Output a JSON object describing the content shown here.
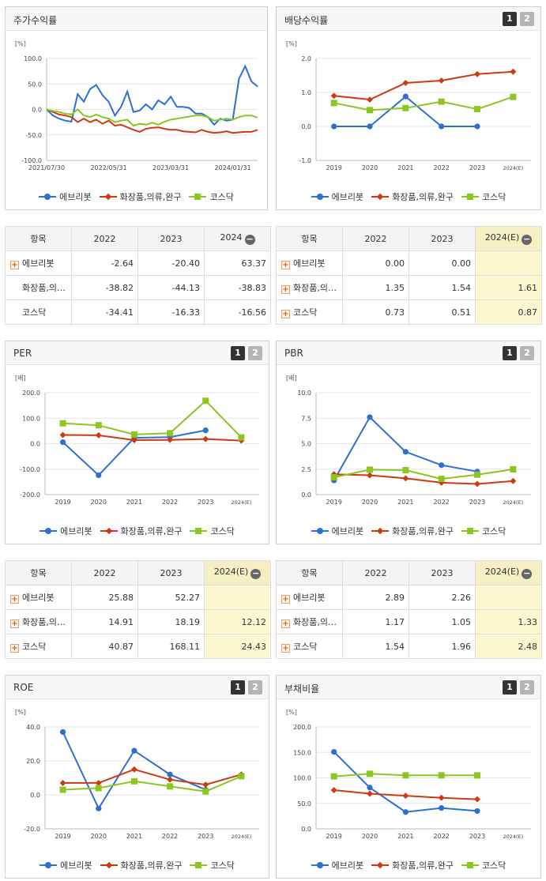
{
  "colors": {
    "company": "#2e6fd4",
    "industry": "#cc3a12",
    "kosdaq": "#8bc621",
    "estimate_bg": "#fdf8d2"
  },
  "legend": {
    "company": "에브리봇",
    "industry": "화장품,의류,완구",
    "kosdaq": "코스닥"
  },
  "pager": {
    "p1": "1",
    "p2": "2"
  },
  "table_icons": {
    "plus": "+",
    "minus": "−"
  },
  "charts": {
    "stock_return": {
      "title": "주가수익률",
      "unit": "[%]",
      "chart_data": {
        "type": "line",
        "ylim": [
          -100,
          100
        ],
        "yticks": [
          "100.0",
          "50.0",
          "0.0",
          "-50.0",
          "-100.0"
        ],
        "xticks": [
          "2021/07/30",
          "2022/05/31",
          "2023/03/31",
          "2024/01/31"
        ],
        "x": [
          "2021/07/30",
          "2021/08/31",
          "2021/09/30",
          "2021/10/31",
          "2021/11/30",
          "2021/12/31",
          "2022/01/31",
          "2022/02/28",
          "2022/03/31",
          "2022/04/30",
          "2022/05/31",
          "2022/06/30",
          "2022/07/31",
          "2022/08/31",
          "2022/09/30",
          "2022/10/31",
          "2022/11/30",
          "2022/12/31",
          "2023/01/31",
          "2023/02/28",
          "2023/03/31",
          "2023/04/30",
          "2023/05/31",
          "2023/06/30",
          "2023/07/31",
          "2023/08/31",
          "2023/09/30",
          "2023/10/31",
          "2023/11/30",
          "2023/12/31",
          "2024/01/31",
          "2024/02/29",
          "2024/03/31",
          "2024/04/30",
          "2024/05/31"
        ],
        "series": [
          {
            "name": "에브리봇",
            "values": [
              0,
              -12,
              -18,
              -22,
              -24,
              30,
              15,
              40,
              48,
              28,
              15,
              -12,
              5,
              35,
              -5,
              -2,
              10,
              0,
              18,
              10,
              25,
              5,
              5,
              3,
              -8,
              -8,
              -15,
              -30,
              -18,
              -22,
              -20,
              60,
              85,
              55,
              45
            ]
          },
          {
            "name": "화장품,의류,완구",
            "values": [
              0,
              -5,
              -10,
              -12,
              -15,
              -25,
              -18,
              -25,
              -20,
              -28,
              -22,
              -32,
              -30,
              -35,
              -40,
              -44,
              -38,
              -36,
              -35,
              -38,
              -40,
              -40,
              -43,
              -44,
              -45,
              -40,
              -44,
              -46,
              -45,
              -43,
              -46,
              -45,
              -44,
              -44,
              -40
            ]
          },
          {
            "name": "코스닥",
            "values": [
              0,
              -3,
              -5,
              -8,
              -10,
              0,
              -12,
              -15,
              -10,
              -15,
              -18,
              -25,
              -22,
              -20,
              -32,
              -28,
              -30,
              -26,
              -30,
              -24,
              -20,
              -18,
              -16,
              -14,
              -12,
              -12,
              -15,
              -22,
              -20,
              -18,
              -20,
              -15,
              -12,
              -12,
              -16
            ]
          }
        ]
      }
    },
    "dividend_yield": {
      "title": "배당수익률",
      "unit": "[%]",
      "chart_data": {
        "type": "line",
        "ylim": [
          -1.0,
          2.0
        ],
        "yticks": [
          "2.0",
          "1.0",
          "0.0",
          "-1.0"
        ],
        "categories": [
          "2019",
          "2020",
          "2021",
          "2022",
          "2023",
          "2024(E)"
        ],
        "series": [
          {
            "name": "에브리봇",
            "values": [
              0.0,
              0.0,
              0.88,
              0.0,
              0.0,
              null
            ]
          },
          {
            "name": "화장품,의류,완구",
            "values": [
              0.9,
              0.79,
              1.28,
              1.35,
              1.54,
              1.61
            ]
          },
          {
            "name": "코스닥",
            "values": [
              0.69,
              0.48,
              0.54,
              0.73,
              0.51,
              0.87
            ]
          }
        ]
      }
    },
    "per": {
      "title": "PER",
      "unit": "[배]",
      "chart_data": {
        "type": "line",
        "ylim": [
          -200,
          200
        ],
        "yticks": [
          "200.0",
          "100.0",
          "0.0",
          "-100.0",
          "-200.0"
        ],
        "categories": [
          "2019",
          "2020",
          "2021",
          "2022",
          "2023",
          "2024(E)"
        ],
        "series": [
          {
            "name": "에브리봇",
            "values": [
              6,
              -124,
              23,
              25.88,
              52.27,
              null
            ]
          },
          {
            "name": "화장품,의류,완구",
            "values": [
              34,
              33,
              14,
              14.91,
              18.19,
              12.12
            ]
          },
          {
            "name": "코스닥",
            "values": [
              80,
              72,
              36,
              40.87,
              168.11,
              24.43
            ]
          }
        ]
      }
    },
    "pbr": {
      "title": "PBR",
      "unit": "[배]",
      "chart_data": {
        "type": "line",
        "ylim": [
          0.0,
          10.0
        ],
        "yticks": [
          "10.0",
          "7.5",
          "5.0",
          "2.5",
          "0.0"
        ],
        "categories": [
          "2019",
          "2020",
          "2021",
          "2022",
          "2023",
          "2024(E)"
        ],
        "series": [
          {
            "name": "에브리봇",
            "values": [
              1.4,
              7.6,
              4.2,
              2.89,
              2.26,
              null
            ]
          },
          {
            "name": "화장품,의류,완구",
            "values": [
              2.0,
              1.9,
              1.6,
              1.17,
              1.05,
              1.33
            ]
          },
          {
            "name": "코스닥",
            "values": [
              1.7,
              2.45,
              2.4,
              1.54,
              1.96,
              2.48
            ]
          }
        ]
      }
    },
    "roe": {
      "title": "ROE",
      "unit": "[%]",
      "chart_data": {
        "type": "line",
        "ylim": [
          -20.0,
          40.0
        ],
        "yticks": [
          "40.0",
          "20.0",
          "0.0",
          "-20.0"
        ],
        "categories": [
          "2019",
          "2020",
          "2021",
          "2022",
          "2023",
          "2024(E)"
        ],
        "series": [
          {
            "name": "에브리봇",
            "values": [
              37,
              -8,
              26,
              12,
              3,
              null
            ]
          },
          {
            "name": "화장품,의류,완구",
            "values": [
              7,
              7,
              15,
              9,
              6,
              12
            ]
          },
          {
            "name": "코스닥",
            "values": [
              3,
              4,
              8,
              5,
              2,
              11
            ]
          }
        ]
      }
    },
    "debt_ratio": {
      "title": "부채비율",
      "unit": "[%]",
      "chart_data": {
        "type": "line",
        "ylim": [
          0.0,
          200.0
        ],
        "yticks": [
          "200.0",
          "150.0",
          "100.0",
          "50.0",
          "0.0"
        ],
        "categories": [
          "2019",
          "2020",
          "2021",
          "2022",
          "2023",
          "2024(E)"
        ],
        "series": [
          {
            "name": "에브리봇",
            "values": [
              151,
              81,
              33,
              41,
              35,
              null
            ]
          },
          {
            "name": "화장품,의류,완구",
            "values": [
              76,
              69,
              65,
              61,
              58,
              null
            ]
          },
          {
            "name": "코스닥",
            "values": [
              103,
              108,
              105,
              105,
              105,
              null
            ]
          }
        ]
      }
    }
  },
  "tables": {
    "stock_return": {
      "headers": [
        "항목",
        "2022",
        "2023",
        "2024"
      ],
      "rows": [
        {
          "name": "에브리봇",
          "plus": true,
          "values": [
            "-2.64",
            "-20.40",
            "63.37"
          ]
        },
        {
          "name": "화장품,의…",
          "plus": false,
          "values": [
            "-38.82",
            "-44.13",
            "-38.83"
          ]
        },
        {
          "name": "코스닥",
          "plus": false,
          "values": [
            "-34.41",
            "-16.33",
            "-16.56"
          ]
        }
      ]
    },
    "dividend_yield": {
      "headers": [
        "항목",
        "2022",
        "2023",
        "2024(E)"
      ],
      "rows": [
        {
          "name": "에브리봇",
          "plus": true,
          "values": [
            "0.00",
            "0.00",
            ""
          ]
        },
        {
          "name": "화장품,의…",
          "plus": true,
          "values": [
            "1.35",
            "1.54",
            "1.61"
          ]
        },
        {
          "name": "코스닥",
          "plus": true,
          "values": [
            "0.73",
            "0.51",
            "0.87"
          ]
        }
      ]
    },
    "per": {
      "headers": [
        "항목",
        "2022",
        "2023",
        "2024(E)"
      ],
      "rows": [
        {
          "name": "에브리봇",
          "plus": true,
          "values": [
            "25.88",
            "52.27",
            ""
          ]
        },
        {
          "name": "화장품,의…",
          "plus": true,
          "values": [
            "14.91",
            "18.19",
            "12.12"
          ]
        },
        {
          "name": "코스닥",
          "plus": true,
          "values": [
            "40.87",
            "168.11",
            "24.43"
          ]
        }
      ]
    },
    "pbr": {
      "headers": [
        "항목",
        "2022",
        "2023",
        "2024(E)"
      ],
      "rows": [
        {
          "name": "에브리봇",
          "plus": true,
          "values": [
            "2.89",
            "2.26",
            ""
          ]
        },
        {
          "name": "화장품,의…",
          "plus": true,
          "values": [
            "1.17",
            "1.05",
            "1.33"
          ]
        },
        {
          "name": "코스닥",
          "plus": true,
          "values": [
            "1.54",
            "1.96",
            "2.48"
          ]
        }
      ]
    }
  }
}
